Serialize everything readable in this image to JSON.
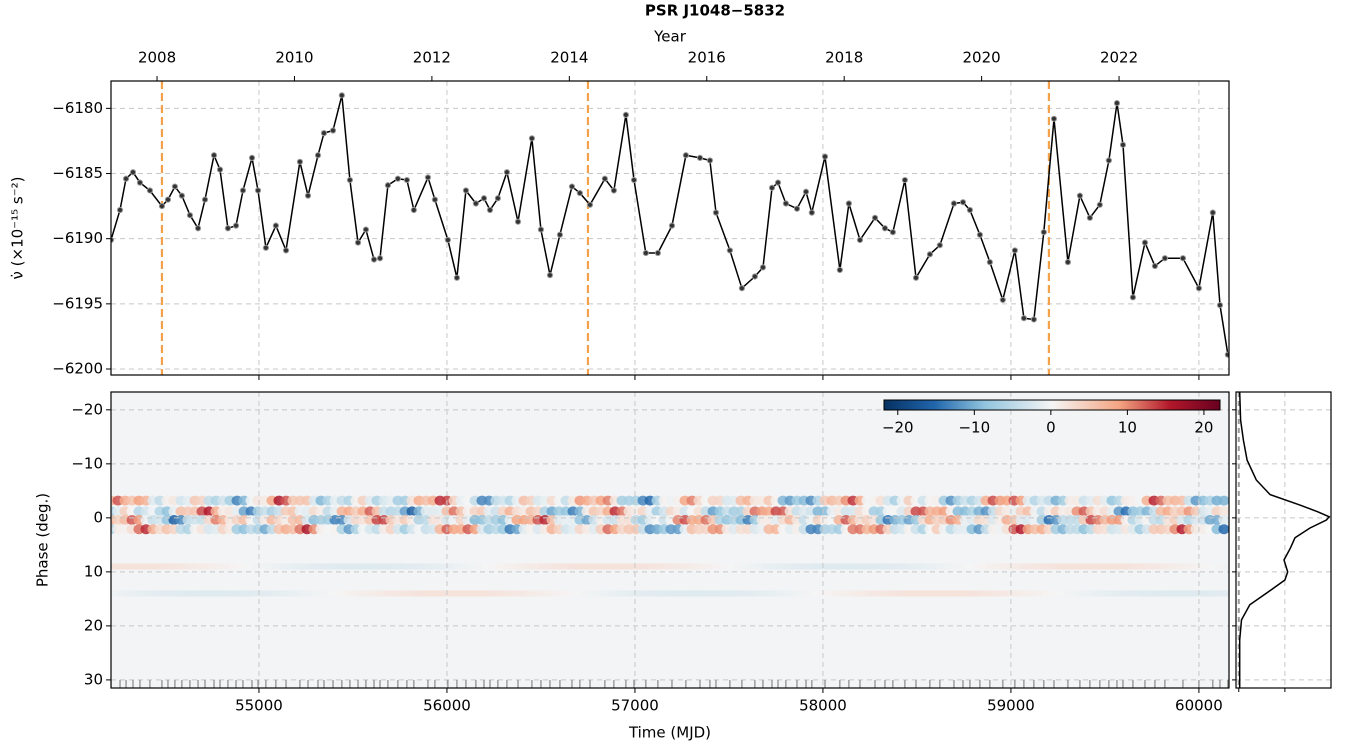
{
  "chart_data": [
    {
      "type": "line",
      "title": "PSR J1048−5832",
      "ylabel": "ν̇ (×10⁻¹⁵ s⁻²)",
      "x2label": "Year",
      "x": [
        54213,
        54261,
        54293,
        54330,
        54367,
        54420,
        54484,
        54516,
        54553,
        54590,
        54633,
        54676,
        54713,
        54761,
        54793,
        54835,
        54878,
        54915,
        54963,
        54995,
        55037,
        55090,
        55144,
        55218,
        55261,
        55314,
        55346,
        55394,
        55441,
        55484,
        55527,
        55569,
        55612,
        55644,
        55686,
        55739,
        55787,
        55824,
        55899,
        55936,
        56005,
        56053,
        56101,
        56154,
        56197,
        56229,
        56271,
        56319,
        56378,
        56452,
        56500,
        56548,
        56601,
        56665,
        56707,
        56761,
        56840,
        56888,
        56952,
        56995,
        57058,
        57122,
        57197,
        57271,
        57346,
        57399,
        57431,
        57505,
        57569,
        57638,
        57681,
        57729,
        57761,
        57803,
        57862,
        57910,
        57941,
        58011,
        58090,
        58138,
        58197,
        58277,
        58330,
        58372,
        58436,
        58495,
        58569,
        58622,
        58697,
        58745,
        58782,
        58835,
        58888,
        58957,
        59021,
        59069,
        59122,
        59175,
        59229,
        59303,
        59367,
        59420,
        59473,
        59521,
        59564,
        59596,
        59649,
        59713,
        59766,
        59819,
        59915,
        60000,
        60074,
        60112,
        60154
      ],
      "series": [
        {
          "color": "#000000",
          "values": [
            -6190.1,
            -6187.8,
            -6185.4,
            -6184.9,
            -6185.7,
            -6186.3,
            -6187.5,
            -6187.0,
            -6186.0,
            -6186.7,
            -6188.2,
            -6189.2,
            -6187.0,
            -6183.6,
            -6184.7,
            -6189.2,
            -6189.0,
            -6186.3,
            -6183.8,
            -6186.3,
            -6190.7,
            -6189.0,
            -6190.9,
            -6184.1,
            -6186.7,
            -6183.6,
            -6181.9,
            -6181.7,
            -6179.0,
            -6185.5,
            -6190.3,
            -6189.3,
            -6191.6,
            -6191.5,
            -6185.9,
            -6185.4,
            -6185.5,
            -6187.8,
            -6185.3,
            -6187.0,
            -6190.1,
            -6193.0,
            -6186.3,
            -6187.3,
            -6186.9,
            -6187.8,
            -6186.9,
            -6184.9,
            -6188.7,
            -6182.3,
            -6189.3,
            -6192.8,
            -6189.7,
            -6186.0,
            -6186.5,
            -6187.4,
            -6185.4,
            -6186.3,
            -6180.5,
            -6185.5,
            -6191.1,
            -6191.1,
            -6189.0,
            -6183.6,
            -6183.8,
            -6184.0,
            -6188.0,
            -6190.9,
            -6193.8,
            -6192.9,
            -6192.2,
            -6186.1,
            -6185.7,
            -6187.3,
            -6187.7,
            -6186.4,
            -6188.0,
            -6183.7,
            -6192.4,
            -6187.3,
            -6190.1,
            -6188.4,
            -6189.2,
            -6189.5,
            -6185.5,
            -6193.0,
            -6191.2,
            -6190.5,
            -6187.3,
            -6187.2,
            -6187.8,
            -6189.7,
            -6191.8,
            -6194.7,
            -6190.9,
            -6196.1,
            -6196.2,
            -6189.5,
            -6180.8,
            -6191.8,
            -6186.7,
            -6188.4,
            -6187.4,
            -6184.0,
            -6179.6,
            -6182.8,
            -6194.5,
            -6190.3,
            -6192.1,
            -6191.5,
            -6191.5,
            -6193.8,
            -6188.0,
            -6195.1,
            -6198.9
          ]
        }
      ],
      "xlim": [
        54213,
        60160
      ],
      "xticks": [
        55000,
        56000,
        57000,
        58000,
        59000,
        60000
      ],
      "x2lim": [
        2007.33,
        2023.6
      ],
      "x2ticks": [
        2008,
        2010,
        2012,
        2014,
        2016,
        2018,
        2020,
        2022
      ],
      "ylim": [
        -6200.46,
        -6177.9
      ],
      "yticks": [
        {
          "value": -6200,
          "label": "−6200"
        },
        {
          "value": -6195,
          "label": "−6195"
        },
        {
          "value": -6190,
          "label": "−6190"
        },
        {
          "value": -6185,
          "label": "−6185"
        },
        {
          "value": -6180,
          "label": "−6180"
        }
      ],
      "vlines": {
        "x": [
          54484,
          56750,
          59202
        ],
        "color": "#f5a04a"
      },
      "grid": true
    },
    {
      "type": "heatmap",
      "xlabel": "Time (MJD)",
      "ylabel": "Phase (deg.)",
      "xlim": [
        54213,
        60160
      ],
      "xticks": [
        55000,
        56000,
        57000,
        58000,
        59000,
        60000
      ],
      "ylim": [
        -23.3,
        31.5
      ],
      "y_inverted": true,
      "yticks": [
        {
          "value": -20,
          "label": "−20"
        },
        {
          "value": -10,
          "label": "−10"
        },
        0,
        10,
        20,
        30
      ],
      "colorbar": {
        "clim": [
          -21.8,
          22.1
        ],
        "colormap": "RdBu_r",
        "ticks": [
          {
            "value": -20,
            "label": "−20"
          },
          {
            "value": -10,
            "label": "−10"
          },
          0,
          10,
          20
        ]
      },
      "grid": true
    },
    {
      "type": "profile",
      "color": "#000000",
      "y": [
        -23.3,
        -18.1,
        -14.4,
        -10.7,
        -7.0,
        -4.3,
        -2.4,
        -1.1,
        -0.2,
        0.4,
        1.9,
        3.7,
        5.6,
        7.8,
        10.0,
        11.5,
        13.7,
        16.1,
        18.9,
        22.6,
        31.5
      ],
      "values": [
        0.01,
        0.02,
        0.05,
        0.09,
        0.19,
        0.34,
        0.66,
        0.86,
        0.98,
        0.95,
        0.77,
        0.61,
        0.56,
        0.49,
        0.53,
        0.5,
        0.32,
        0.12,
        0.03,
        0.01,
        0.01
      ],
      "xlim": [
        -0.03,
        1.0
      ],
      "xticks": [
        0,
        0.5
      ],
      "ylim": [
        -23.3,
        31.5
      ],
      "y_inverted": true,
      "yticks": [
        -20,
        -10,
        0,
        10,
        20,
        30
      ],
      "grid": true
    }
  ]
}
